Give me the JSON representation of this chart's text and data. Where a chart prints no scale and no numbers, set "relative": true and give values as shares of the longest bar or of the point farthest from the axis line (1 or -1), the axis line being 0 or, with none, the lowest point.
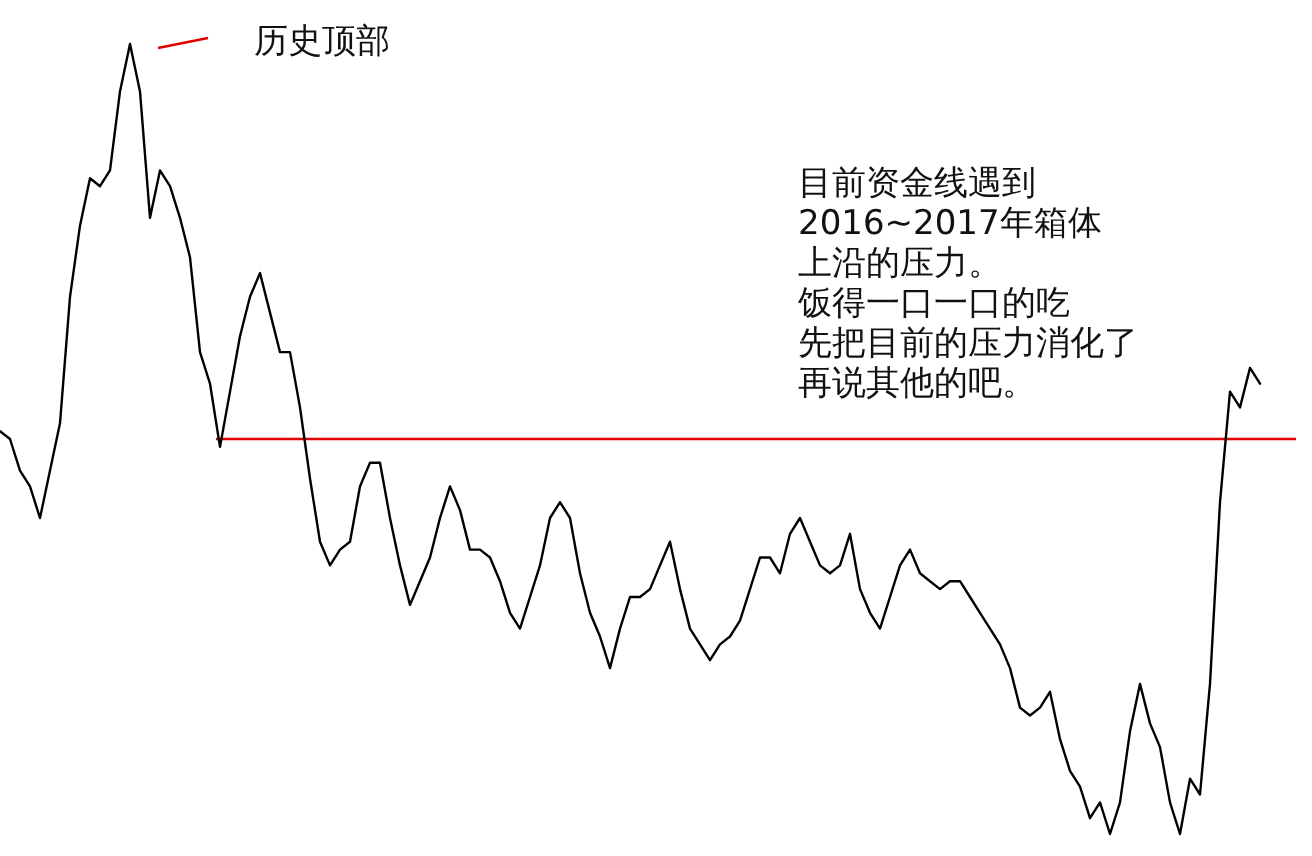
{
  "chart_data": {
    "type": "line",
    "relative": true,
    "color": "#000000",
    "categories": [
      null,
      null,
      null,
      null,
      null,
      null,
      null,
      null,
      null,
      null,
      null,
      null,
      null,
      null,
      null,
      null,
      null,
      null,
      null,
      null,
      null,
      null,
      null,
      null,
      null,
      null,
      null,
      null,
      null,
      null,
      null,
      null,
      null,
      null,
      null,
      null,
      null,
      null,
      null,
      null,
      null,
      null,
      null,
      null,
      null,
      null,
      null,
      null,
      null,
      null,
      null,
      null,
      null,
      null,
      null,
      null,
      null,
      null,
      null,
      null,
      null,
      null,
      null,
      null,
      null,
      null,
      null,
      null,
      null,
      null,
      null,
      null,
      null,
      null,
      null,
      null,
      null,
      null,
      null,
      null,
      null,
      null,
      null,
      null,
      null,
      null,
      null,
      null,
      null,
      null,
      null,
      null,
      null,
      null,
      null,
      null,
      null,
      null,
      null,
      null,
      null,
      null,
      null,
      null,
      null,
      null,
      null,
      null,
      null,
      null,
      null,
      null,
      null,
      null,
      null,
      null,
      null,
      null,
      null,
      null,
      null,
      null,
      null,
      null,
      null,
      null,
      null
    ],
    "values": [
      0.51,
      0.5,
      0.46,
      0.44,
      0.4,
      0.46,
      0.52,
      0.68,
      0.77,
      0.83,
      0.82,
      0.84,
      0.94,
      1,
      0.94,
      0.78,
      0.84,
      0.82,
      0.78,
      0.73,
      0.61,
      0.57,
      0.49,
      0.56,
      0.63,
      0.68,
      0.71,
      0.66,
      0.61,
      0.61,
      0.54,
      0.45,
      0.37,
      0.34,
      0.36,
      0.37,
      0.44,
      0.47,
      0.47,
      0.4,
      0.34,
      0.29,
      0.32,
      0.35,
      0.4,
      0.44,
      0.41,
      0.36,
      0.36,
      0.35,
      0.32,
      0.28,
      0.26,
      0.3,
      0.34,
      0.4,
      0.42,
      0.4,
      0.33,
      0.28,
      0.25,
      0.21,
      0.26,
      0.3,
      0.3,
      0.31,
      0.34,
      0.37,
      0.31,
      0.26,
      0.24,
      0.22,
      0.24,
      0.25,
      0.27,
      0.31,
      0.35,
      0.35,
      0.33,
      0.38,
      0.4,
      0.37,
      0.34,
      0.33,
      0.34,
      0.38,
      0.31,
      0.28,
      0.26,
      0.3,
      0.34,
      0.36,
      0.33,
      0.32,
      0.31,
      0.32,
      0.32,
      0.3,
      0.28,
      0.26,
      0.24,
      0.21,
      0.16,
      0.15,
      0.16,
      0.18,
      0.12,
      0.08,
      0.06,
      0.02,
      0.04,
      0,
      0.04,
      0.13,
      0.19,
      0.14,
      0.11,
      0.04,
      0,
      0.07,
      0.05,
      0.19,
      0.42,
      0.56,
      0.54,
      0.59,
      0.57
    ],
    "ref_lines": [
      {
        "axis": "y",
        "value": 0.5,
        "color": "#e00000"
      }
    ],
    "annotations": [
      "历史顶部",
      "目前资金线遇到",
      "2016~2017年箱体",
      "上沿的压力。",
      "饭得一口一口的吃",
      "先把目前的压力消化了",
      "再说其他的吧。"
    ]
  }
}
